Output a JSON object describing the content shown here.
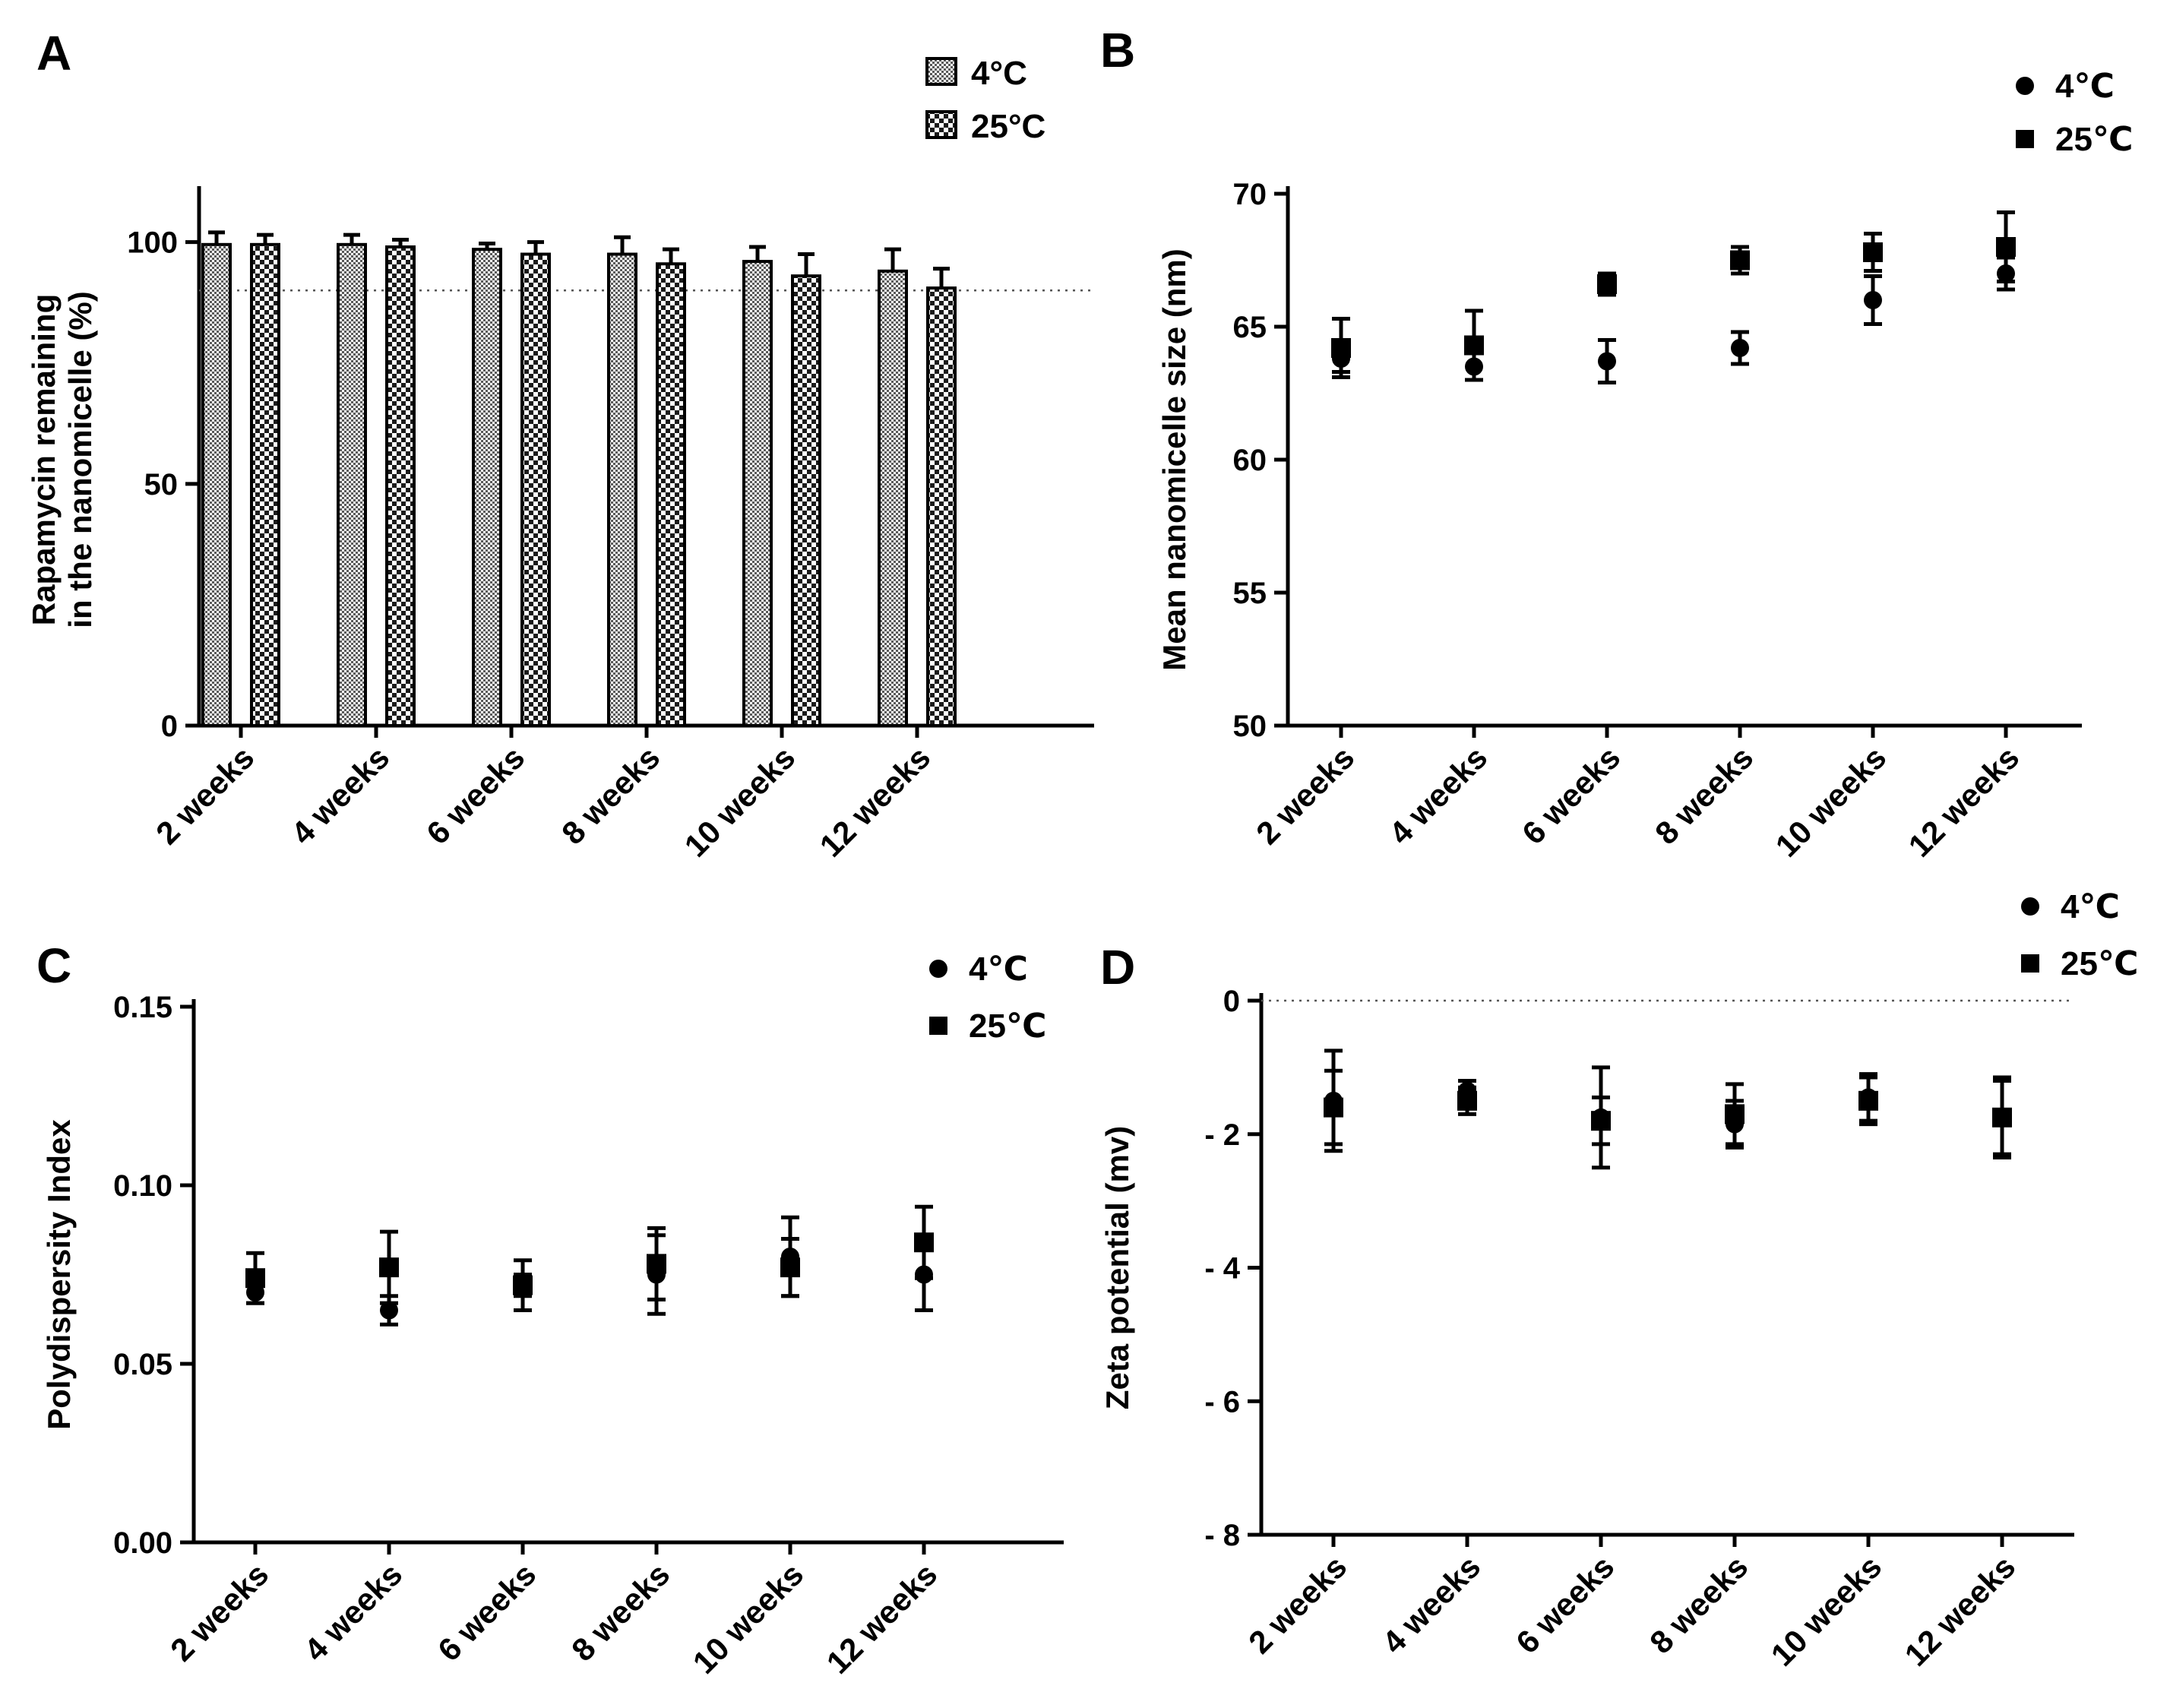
{
  "chart_data": [
    {
      "id": "A",
      "panel_label": "A",
      "type": "bar",
      "title": "",
      "xlabel": "",
      "ylabel_lines": [
        "Rapamycin remaining",
        "in the nanomicelle (%)"
      ],
      "categories": [
        "2 weeks",
        "4 weeks",
        "6 weeks",
        "8 weeks",
        "10 weeks",
        "12 weeks"
      ],
      "ylim": [
        0,
        110
      ],
      "yticks": [
        0,
        50,
        100
      ],
      "reference_line": 90,
      "legend_position": "top-right",
      "series": [
        {
          "name": "4°C",
          "legend_label": "4°C",
          "pattern": "fine-checker",
          "values": [
            99.5,
            99.5,
            98.5,
            97.5,
            96.0,
            94.0
          ],
          "errors": [
            2.5,
            2.0,
            1.2,
            3.5,
            3.0,
            4.5
          ]
        },
        {
          "name": "25°C",
          "legend_label": "25°C",
          "pattern": "coarse-checker",
          "values": [
            99.5,
            99.0,
            97.5,
            95.5,
            93.0,
            90.5
          ],
          "errors": [
            2.0,
            1.5,
            2.5,
            3.0,
            4.5,
            4.0
          ]
        }
      ]
    },
    {
      "id": "B",
      "panel_label": "B",
      "type": "scatter",
      "title": "",
      "xlabel": "",
      "ylabel": "Mean nanomicelle size (nm)",
      "categories": [
        "2 weeks",
        "4 weeks",
        "6 weeks",
        "8 weeks",
        "10 weeks",
        "12 weeks"
      ],
      "ylim": [
        50,
        70
      ],
      "yticks": [
        50,
        55,
        60,
        65,
        70
      ],
      "legend_position": "top-right",
      "series": [
        {
          "name": "4℃",
          "legend_label": "4℃",
          "marker": "circle",
          "values": [
            63.8,
            63.5,
            63.7,
            64.2,
            66.0,
            67.0
          ],
          "errors": [
            0.5,
            0.5,
            0.8,
            0.6,
            0.9,
            0.6
          ]
        },
        {
          "name": "25℃",
          "legend_label": "25℃",
          "marker": "square",
          "values": [
            64.2,
            64.3,
            66.6,
            67.5,
            67.8,
            68.0
          ],
          "errors": [
            1.1,
            1.3,
            0.4,
            0.5,
            0.7,
            1.3
          ]
        }
      ]
    },
    {
      "id": "C",
      "panel_label": "C",
      "type": "scatter",
      "title": "",
      "xlabel": "",
      "ylabel": "Polydispersity Index",
      "categories": [
        "2 weeks",
        "4 weeks",
        "6 weeks",
        "8 weeks",
        "10 weeks",
        "12 weeks"
      ],
      "ylim": [
        0,
        0.15
      ],
      "yticks": [
        "0.00",
        "0.05",
        "0.10",
        "0.15"
      ],
      "legend_position": "top-right",
      "series": [
        {
          "name": "4℃",
          "legend_label": "4℃",
          "marker": "circle",
          "values": [
            0.07,
            0.065,
            0.072,
            0.075,
            0.08,
            0.075
          ],
          "errors": [
            0.003,
            0.004,
            0.003,
            0.011,
            0.011,
            0.01
          ]
        },
        {
          "name": "25℃",
          "legend_label": "25℃",
          "marker": "square",
          "values": [
            0.074,
            0.077,
            0.072,
            0.078,
            0.077,
            0.084
          ],
          "errors": [
            0.007,
            0.01,
            0.007,
            0.01,
            0.008,
            0.01
          ]
        }
      ]
    },
    {
      "id": "D",
      "panel_label": "D",
      "type": "scatter",
      "title": "",
      "xlabel": "",
      "ylabel": "Zeta potential (mv)",
      "categories": [
        "2 weeks",
        "4 weeks",
        "6 weeks",
        "8 weeks",
        "10 weeks",
        "12 weeks"
      ],
      "ylim": [
        -8,
        0
      ],
      "yticks": [
        -8,
        -6,
        -4,
        -2,
        0
      ],
      "ytick_labels": [
        "- 8",
        "- 6",
        "- 4",
        "- 2",
        "0"
      ],
      "reference_line": 0,
      "legend_position": "top-right",
      "series": [
        {
          "name": "4℃",
          "legend_label": "4℃",
          "marker": "circle",
          "values": [
            -1.5,
            -1.35,
            -1.75,
            -1.85,
            -1.45,
            -1.75
          ],
          "errors": [
            0.75,
            0.15,
            0.75,
            0.35,
            0.35,
            0.6
          ]
        },
        {
          "name": "25℃",
          "legend_label": "25℃",
          "marker": "square",
          "values": [
            -1.6,
            -1.5,
            -1.8,
            -1.7,
            -1.5,
            -1.75
          ],
          "errors": [
            0.55,
            0.2,
            0.35,
            0.45,
            0.35,
            0.55
          ]
        }
      ]
    }
  ]
}
